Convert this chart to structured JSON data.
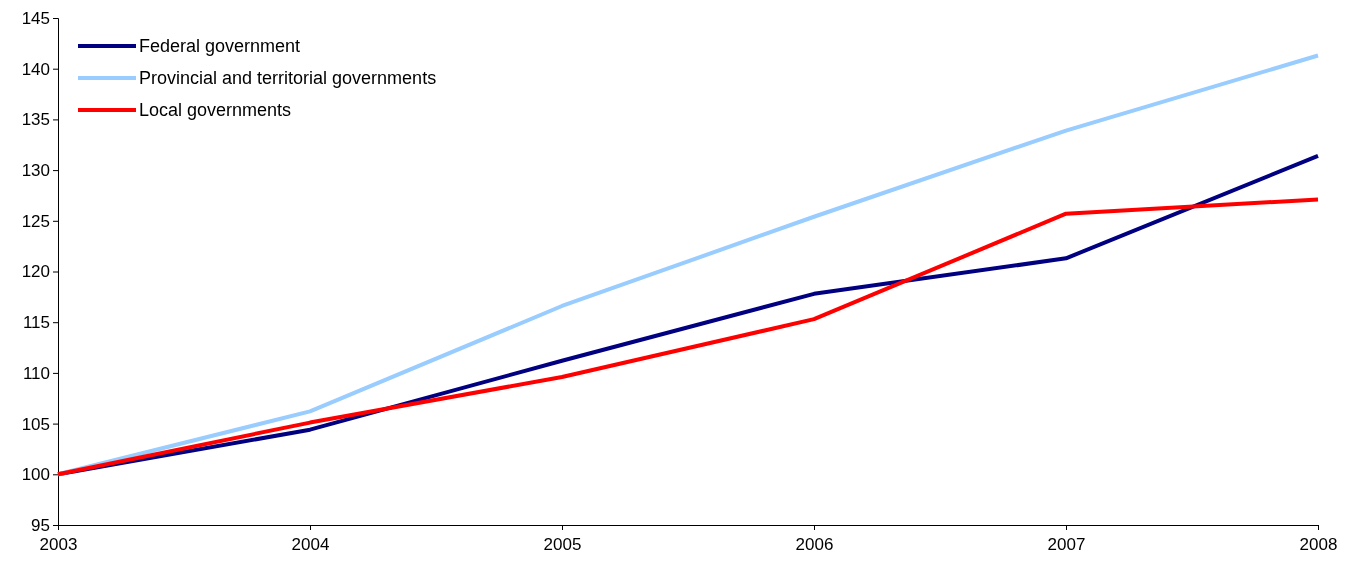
{
  "chart_data": {
    "type": "line",
    "x": [
      2003,
      2004,
      2005,
      2006,
      2007,
      2008
    ],
    "xlim": [
      2003,
      2008
    ],
    "xticks": [
      2003,
      2004,
      2005,
      2006,
      2007,
      2008
    ],
    "ylim": [
      95,
      145
    ],
    "yticks": [
      95,
      100,
      105,
      110,
      115,
      120,
      125,
      130,
      135,
      140,
      145
    ],
    "grid": false,
    "legend": "top left",
    "marker": "none",
    "line_style": "solid",
    "series": [
      {
        "name": "Federal government",
        "color": "#000080",
        "values": [
          100,
          104.4,
          111.2,
          117.8,
          121.3,
          131.4
        ]
      },
      {
        "name": "Provincial and territorial governments",
        "color": "#99ccff",
        "values": [
          100,
          106.2,
          116.6,
          125.4,
          133.9,
          141.3
        ]
      },
      {
        "name": "Local governments",
        "color": "#ff0000",
        "values": [
          100,
          105.1,
          109.6,
          115.3,
          125.7,
          127.1
        ]
      }
    ]
  }
}
